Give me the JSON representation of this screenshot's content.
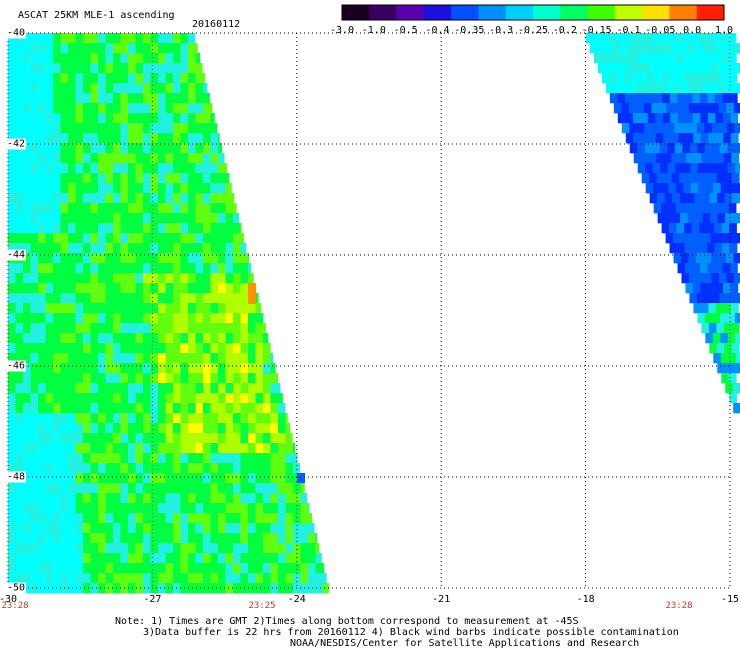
{
  "header": {
    "title": "ASCAT 25KM MLE-1 ascending",
    "date": "20160112"
  },
  "colorbar": {
    "labels": [
      "-3.0",
      "-1.0",
      "-0.5",
      "-0.4",
      "-0.35",
      "-0.3",
      "-0.25",
      "-0.2",
      "-0.15",
      "-0.1",
      "-0.05",
      "0.0",
      "1.0"
    ],
    "colors": [
      "#1a0020",
      "#3a0060",
      "#5a00b0",
      "#1a10e0",
      "#0050ff",
      "#0090ff",
      "#00d0ff",
      "#00ffd0",
      "#00ff60",
      "#40ff00",
      "#c0ff00",
      "#ffe000",
      "#ff8000",
      "#ff2000"
    ]
  },
  "axes": {
    "x_ticks": [
      "-30",
      "-27",
      "-24",
      "-21",
      "-18",
      "-15"
    ],
    "y_ticks": [
      "-40",
      "-42",
      "-44",
      "-46",
      "-48",
      "-50"
    ]
  },
  "times": [
    "23:28",
    "23:25",
    "23:28"
  ],
  "notes": [
    "Note: 1) Times are GMT 2)Times along bottom correspond to measurement at -45S",
    "3)Data buffer is 22 hrs from 20160112 4) Black wind barbs indicate possible contamination",
    "NOAA/NESDIS/Center for Satellite Applications and Research"
  ],
  "map_colors": {
    "cyan": "#00ffff",
    "aqua": "#22f0e0",
    "green": "#00ff40",
    "lime": "#60ff10",
    "yellowgreen": "#b0ff00",
    "yellow": "#ffff00",
    "orange": "#ff9000",
    "blue": "#0030ff",
    "blue2": "#0060ff",
    "skyblue": "#0090ff",
    "gridline": "#000000"
  }
}
